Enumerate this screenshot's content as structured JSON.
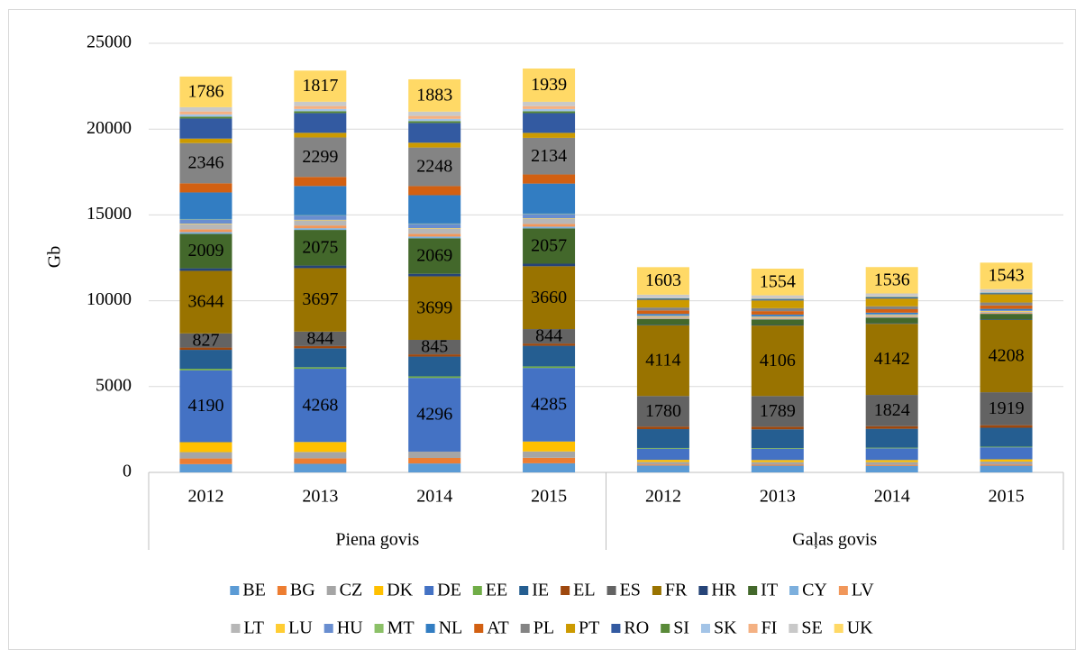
{
  "chart_data": {
    "type": "stacked_bar",
    "y_label": "Gb",
    "ylim": [
      0,
      25000
    ],
    "yticks": [
      0,
      5000,
      10000,
      15000,
      20000,
      25000
    ],
    "grid": true,
    "legend": "bottom",
    "groups": [
      {
        "label": "Piena govis",
        "categories": [
          "2012",
          "2013",
          "2014",
          "2015"
        ]
      },
      {
        "label": "Gaļas govis",
        "categories": [
          "2012",
          "2013",
          "2014",
          "2015"
        ]
      }
    ],
    "series": [
      {
        "name": "BE",
        "color": "#5b9bd5",
        "values": [
          480,
          500,
          520,
          530,
          400,
          390,
          380,
          390
        ]
      },
      {
        "name": "BG",
        "color": "#ed7d31",
        "values": [
          330,
          320,
          320,
          320,
          60,
          60,
          60,
          70
        ]
      },
      {
        "name": "CZ",
        "color": "#a5a5a5",
        "values": [
          370,
          370,
          370,
          370,
          150,
          150,
          160,
          170
        ]
      },
      {
        "name": "DK",
        "color": "#ffc000",
        "values": [
          580,
          580,
          0,
          580,
          120,
          120,
          120,
          130
        ]
      },
      {
        "name": "DE",
        "color": "#4472c4",
        "values": [
          4190,
          4268,
          4296,
          4285,
          650,
          650,
          680,
          700
        ],
        "show_values": [
          true,
          true,
          true,
          true,
          false,
          false,
          false,
          false
        ]
      },
      {
        "name": "EE",
        "color": "#70ad47",
        "values": [
          90,
          90,
          90,
          90,
          40,
          40,
          40,
          40
        ]
      },
      {
        "name": "IE",
        "color": "#255e91",
        "values": [
          1100,
          1100,
          1150,
          1200,
          1100,
          1100,
          1100,
          1100
        ]
      },
      {
        "name": "EL",
        "color": "#9e480e",
        "values": [
          130,
          130,
          130,
          130,
          150,
          150,
          150,
          150
        ]
      },
      {
        "name": "ES",
        "color": "#636363",
        "values": [
          827,
          844,
          845,
          844,
          1780,
          1789,
          1824,
          1919
        ],
        "show_values": [
          true,
          true,
          true,
          true,
          true,
          true,
          true,
          true
        ]
      },
      {
        "name": "FR",
        "color": "#997300",
        "values": [
          3644,
          3697,
          3699,
          3660,
          4114,
          4106,
          4142,
          4208
        ],
        "show_values": [
          true,
          true,
          true,
          true,
          true,
          true,
          true,
          true
        ]
      },
      {
        "name": "HR",
        "color": "#264478",
        "values": [
          150,
          150,
          150,
          150,
          30,
          30,
          30,
          30
        ]
      },
      {
        "name": "IT",
        "color": "#43682b",
        "values": [
          2009,
          2075,
          2069,
          2057,
          350,
          320,
          330,
          330
        ],
        "show_values": [
          true,
          true,
          true,
          true,
          false,
          false,
          false,
          false
        ]
      },
      {
        "name": "CY",
        "color": "#7cafdd",
        "values": [
          100,
          100,
          100,
          100,
          20,
          20,
          20,
          20
        ]
      },
      {
        "name": "LV",
        "color": "#f1975a",
        "values": [
          160,
          160,
          160,
          160,
          40,
          40,
          40,
          40
        ]
      },
      {
        "name": "LT",
        "color": "#b7b7b7",
        "values": [
          300,
          300,
          300,
          300,
          60,
          60,
          60,
          60
        ]
      },
      {
        "name": "LU",
        "color": "#ffcd33",
        "values": [
          30,
          30,
          30,
          30,
          40,
          40,
          40,
          40
        ]
      },
      {
        "name": "HU",
        "color": "#698ed0",
        "values": [
          250,
          250,
          250,
          250,
          50,
          50,
          50,
          50
        ]
      },
      {
        "name": "MT",
        "color": "#8cc168",
        "values": [
          20,
          20,
          20,
          20,
          0,
          0,
          0,
          0
        ]
      },
      {
        "name": "NL",
        "color": "#327dc2",
        "values": [
          1550,
          1700,
          1650,
          1750,
          80,
          80,
          80,
          80
        ]
      },
      {
        "name": "AT",
        "color": "#d26012",
        "values": [
          530,
          530,
          530,
          530,
          200,
          200,
          200,
          200
        ]
      },
      {
        "name": "PL",
        "color": "#848484",
        "values": [
          2346,
          2299,
          2248,
          2134,
          170,
          170,
          170,
          170
        ],
        "show_values": [
          true,
          true,
          true,
          true,
          false,
          false,
          false,
          false
        ]
      },
      {
        "name": "PT",
        "color": "#cc9a00",
        "values": [
          260,
          270,
          280,
          290,
          450,
          450,
          450,
          480
        ]
      },
      {
        "name": "RO",
        "color": "#335aa1",
        "values": [
          1170,
          1150,
          1150,
          1150,
          60,
          60,
          60,
          60
        ]
      },
      {
        "name": "SI",
        "color": "#5a8a39",
        "values": [
          110,
          110,
          110,
          110,
          30,
          30,
          30,
          30
        ]
      },
      {
        "name": "SK",
        "color": "#a3c4e7",
        "values": [
          130,
          130,
          130,
          130,
          40,
          40,
          40,
          40
        ]
      },
      {
        "name": "FI",
        "color": "#f4b183",
        "values": [
          170,
          170,
          170,
          170,
          20,
          20,
          20,
          20
        ]
      },
      {
        "name": "SE",
        "color": "#c9c9c9",
        "values": [
          250,
          250,
          250,
          250,
          150,
          150,
          150,
          150
        ]
      },
      {
        "name": "UK",
        "color": "#ffd966",
        "values": [
          1786,
          1817,
          1883,
          1939,
          1603,
          1554,
          1536,
          1543
        ],
        "show_values": [
          true,
          true,
          true,
          true,
          true,
          true,
          true,
          true
        ]
      }
    ]
  }
}
